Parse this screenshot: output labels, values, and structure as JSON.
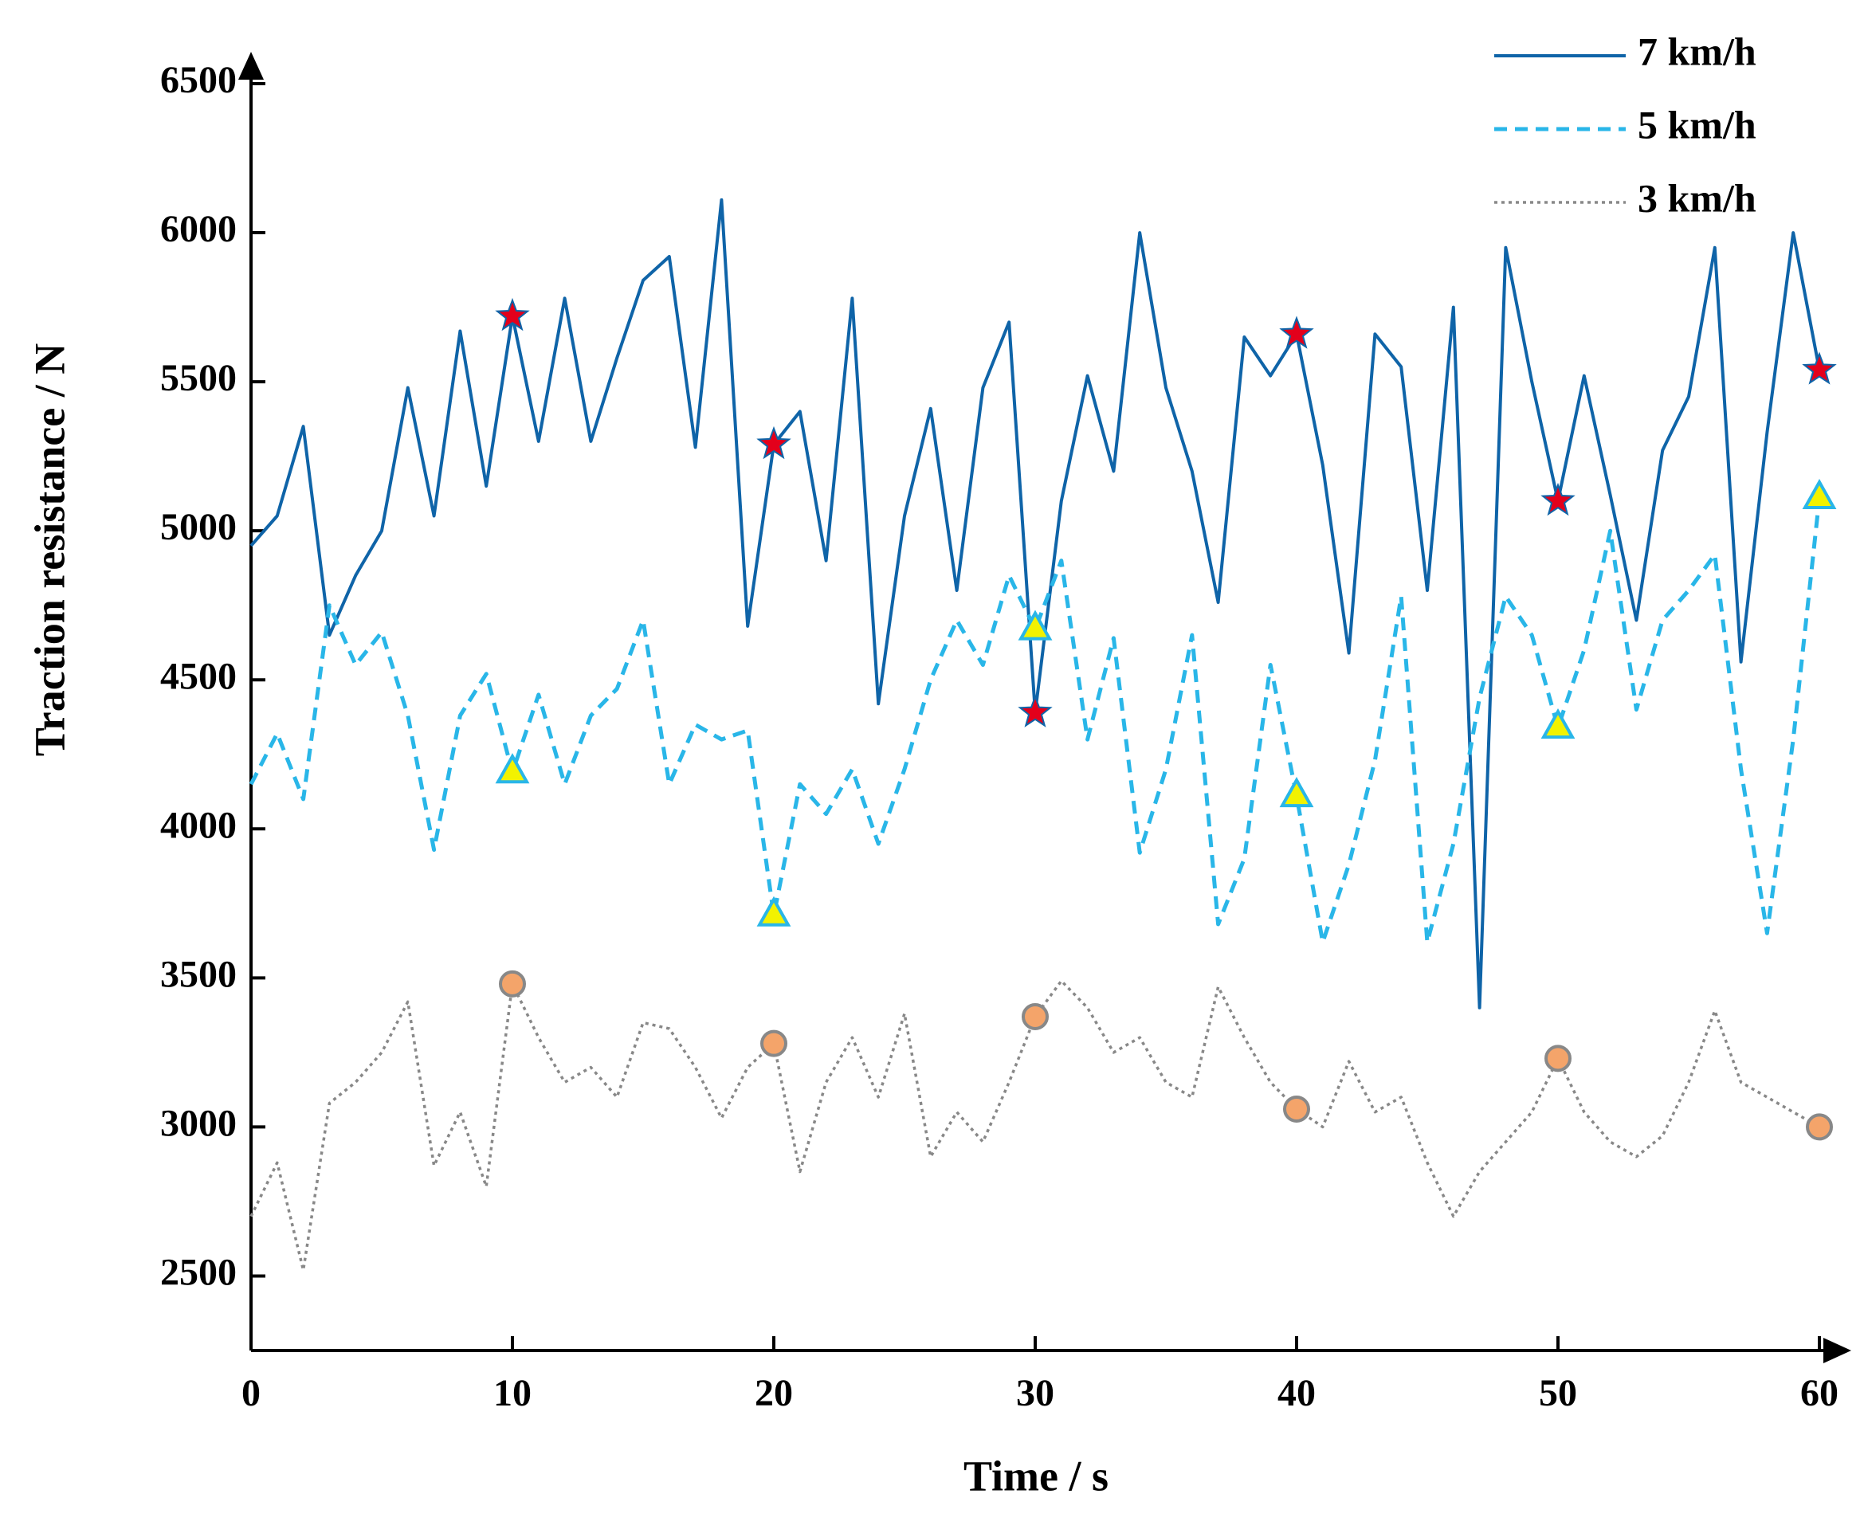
{
  "chart_data": {
    "type": "line",
    "xlabel": "Time / s",
    "ylabel": "Traction resistance / N",
    "x": [
      0,
      1,
      2,
      3,
      4,
      5,
      6,
      7,
      8,
      9,
      10,
      11,
      12,
      13,
      14,
      15,
      16,
      17,
      18,
      19,
      20,
      21,
      22,
      23,
      24,
      25,
      26,
      27,
      28,
      29,
      30,
      31,
      32,
      33,
      34,
      35,
      36,
      37,
      38,
      39,
      40,
      41,
      42,
      43,
      44,
      45,
      46,
      47,
      48,
      49,
      50,
      51,
      52,
      53,
      54,
      55,
      56,
      57,
      58,
      59,
      60
    ],
    "series": [
      {
        "name": "7 km/h",
        "color": "#0f64a8",
        "style": "solid",
        "marker": "star",
        "marker_fill": "#e3001b",
        "values": [
          4950,
          5050,
          5350,
          4650,
          4850,
          5000,
          5480,
          5050,
          5670,
          5150,
          5720,
          5300,
          5780,
          5300,
          5580,
          5840,
          5920,
          5280,
          6110,
          4680,
          5290,
          5400,
          4900,
          5780,
          4420,
          5050,
          5410,
          4800,
          5480,
          5700,
          4390,
          5100,
          5520,
          5200,
          6000,
          5480,
          5200,
          4760,
          5650,
          5520,
          5660,
          5220,
          4590,
          5660,
          5550,
          4800,
          5750,
          3400,
          5950,
          5500,
          5100,
          5520,
          5120,
          4700,
          5270,
          5450,
          5950,
          4560,
          5330,
          6000,
          5540
        ]
      },
      {
        "name": "5 km/h",
        "color": "#29b6e8",
        "style": "dashed",
        "marker": "triangle",
        "marker_fill": "#f2f200",
        "values": [
          4150,
          4320,
          4100,
          4750,
          4550,
          4660,
          4380,
          3930,
          4380,
          4520,
          4190,
          4450,
          4150,
          4380,
          4470,
          4700,
          4150,
          4350,
          4300,
          4330,
          3710,
          4150,
          4050,
          4200,
          3950,
          4200,
          4500,
          4700,
          4550,
          4850,
          4670,
          4900,
          4300,
          4640,
          3920,
          4200,
          4650,
          3680,
          3900,
          4550,
          4110,
          3620,
          3880,
          4230,
          4780,
          3620,
          3950,
          4440,
          4780,
          4650,
          4340,
          4600,
          5000,
          4400,
          4700,
          4800,
          4920,
          4200,
          3650,
          4300,
          5110
        ]
      },
      {
        "name": "3 km/h",
        "color": "#888888",
        "style": "dotted",
        "marker": "circle",
        "marker_fill": "#f4a46a",
        "values": [
          2700,
          2880,
          2520,
          3080,
          3150,
          3250,
          3420,
          2870,
          3050,
          2800,
          3480,
          3300,
          3150,
          3200,
          3100,
          3350,
          3330,
          3200,
          3030,
          3200,
          3280,
          2850,
          3150,
          3300,
          3100,
          3380,
          2900,
          3050,
          2950,
          3150,
          3370,
          3490,
          3400,
          3250,
          3300,
          3150,
          3100,
          3470,
          3300,
          3150,
          3060,
          3000,
          3220,
          3050,
          3100,
          2880,
          2700,
          2850,
          2950,
          3050,
          3230,
          3050,
          2950,
          2900,
          2970,
          3150,
          3390,
          3150,
          3100,
          3050,
          3000
        ]
      }
    ],
    "xlim": [
      0,
      60
    ],
    "xticks": [
      0,
      10,
      20,
      30,
      40,
      50,
      60
    ],
    "ylim": [
      2250,
      6500
    ],
    "yticks": [
      2500,
      3000,
      3500,
      4000,
      4500,
      5000,
      5500,
      6000,
      6500
    ],
    "legend": "upper right"
  }
}
